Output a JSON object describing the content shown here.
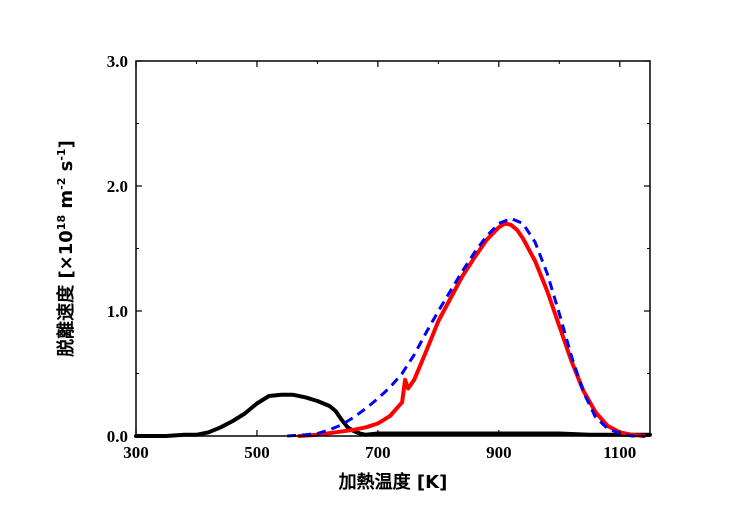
{
  "chart_data": {
    "type": "line",
    "title": "",
    "xlabel": "加熱温度 [K]",
    "ylabel": {
      "prefix": "脱離速度 [×10",
      "exp1": "18",
      "mid1": " m",
      "exp2": "-2",
      "mid2": " s",
      "exp3": "-1",
      "suffix": "]"
    },
    "xlim": [
      300,
      1150
    ],
    "ylim": [
      0,
      3.0
    ],
    "x_ticks": [
      300,
      500,
      700,
      900,
      1100
    ],
    "x_tick_labels": [
      "300",
      "500",
      "700",
      "900",
      "1100"
    ],
    "y_ticks": [
      0,
      1,
      2,
      3
    ],
    "y_tick_labels": [
      "0.0",
      "1.0",
      "2.0",
      "3.0"
    ],
    "grid": false,
    "legend": "none",
    "series": [
      {
        "color": "#000000",
        "style": "solid",
        "x": [
          300,
          350,
          380,
          400,
          420,
          440,
          460,
          480,
          500,
          520,
          540,
          560,
          580,
          600,
          620,
          630,
          640,
          650,
          660,
          670,
          680,
          700,
          750,
          800,
          850,
          900,
          950,
          1000,
          1050,
          1100,
          1150
        ],
        "y": [
          0.0,
          0.0,
          0.01,
          0.01,
          0.03,
          0.07,
          0.12,
          0.18,
          0.26,
          0.32,
          0.33,
          0.33,
          0.31,
          0.28,
          0.24,
          0.2,
          0.13,
          0.07,
          0.04,
          0.02,
          0.01,
          0.02,
          0.02,
          0.02,
          0.02,
          0.02,
          0.02,
          0.02,
          0.01,
          0.01,
          0.01
        ]
      },
      {
        "color": "#ff0000",
        "style": "solid",
        "x": [
          570,
          600,
          630,
          660,
          680,
          700,
          720,
          740,
          745,
          750,
          760,
          780,
          800,
          820,
          840,
          860,
          870,
          880,
          900,
          910,
          920,
          930,
          940,
          960,
          980,
          1000,
          1020,
          1040,
          1060,
          1080,
          1100,
          1120,
          1140
        ],
        "y": [
          0.0,
          0.01,
          0.03,
          0.05,
          0.07,
          0.1,
          0.16,
          0.27,
          0.45,
          0.38,
          0.45,
          0.68,
          0.92,
          1.1,
          1.28,
          1.43,
          1.5,
          1.57,
          1.67,
          1.7,
          1.69,
          1.65,
          1.58,
          1.4,
          1.16,
          0.88,
          0.6,
          0.36,
          0.19,
          0.08,
          0.03,
          0.01,
          0.0
        ]
      },
      {
        "color": "#0000ff",
        "style": "dashed",
        "x": [
          550,
          580,
          600,
          620,
          640,
          660,
          680,
          700,
          720,
          740,
          760,
          780,
          800,
          820,
          840,
          860,
          880,
          900,
          920,
          940,
          960,
          980,
          1000,
          1020,
          1040,
          1060,
          1080,
          1100,
          1120,
          1140
        ],
        "y": [
          0.0,
          0.01,
          0.02,
          0.05,
          0.09,
          0.15,
          0.22,
          0.3,
          0.39,
          0.5,
          0.65,
          0.83,
          1.0,
          1.16,
          1.32,
          1.47,
          1.6,
          1.7,
          1.74,
          1.7,
          1.55,
          1.3,
          0.98,
          0.64,
          0.35,
          0.15,
          0.06,
          0.02,
          0.0,
          0.0
        ]
      }
    ]
  }
}
